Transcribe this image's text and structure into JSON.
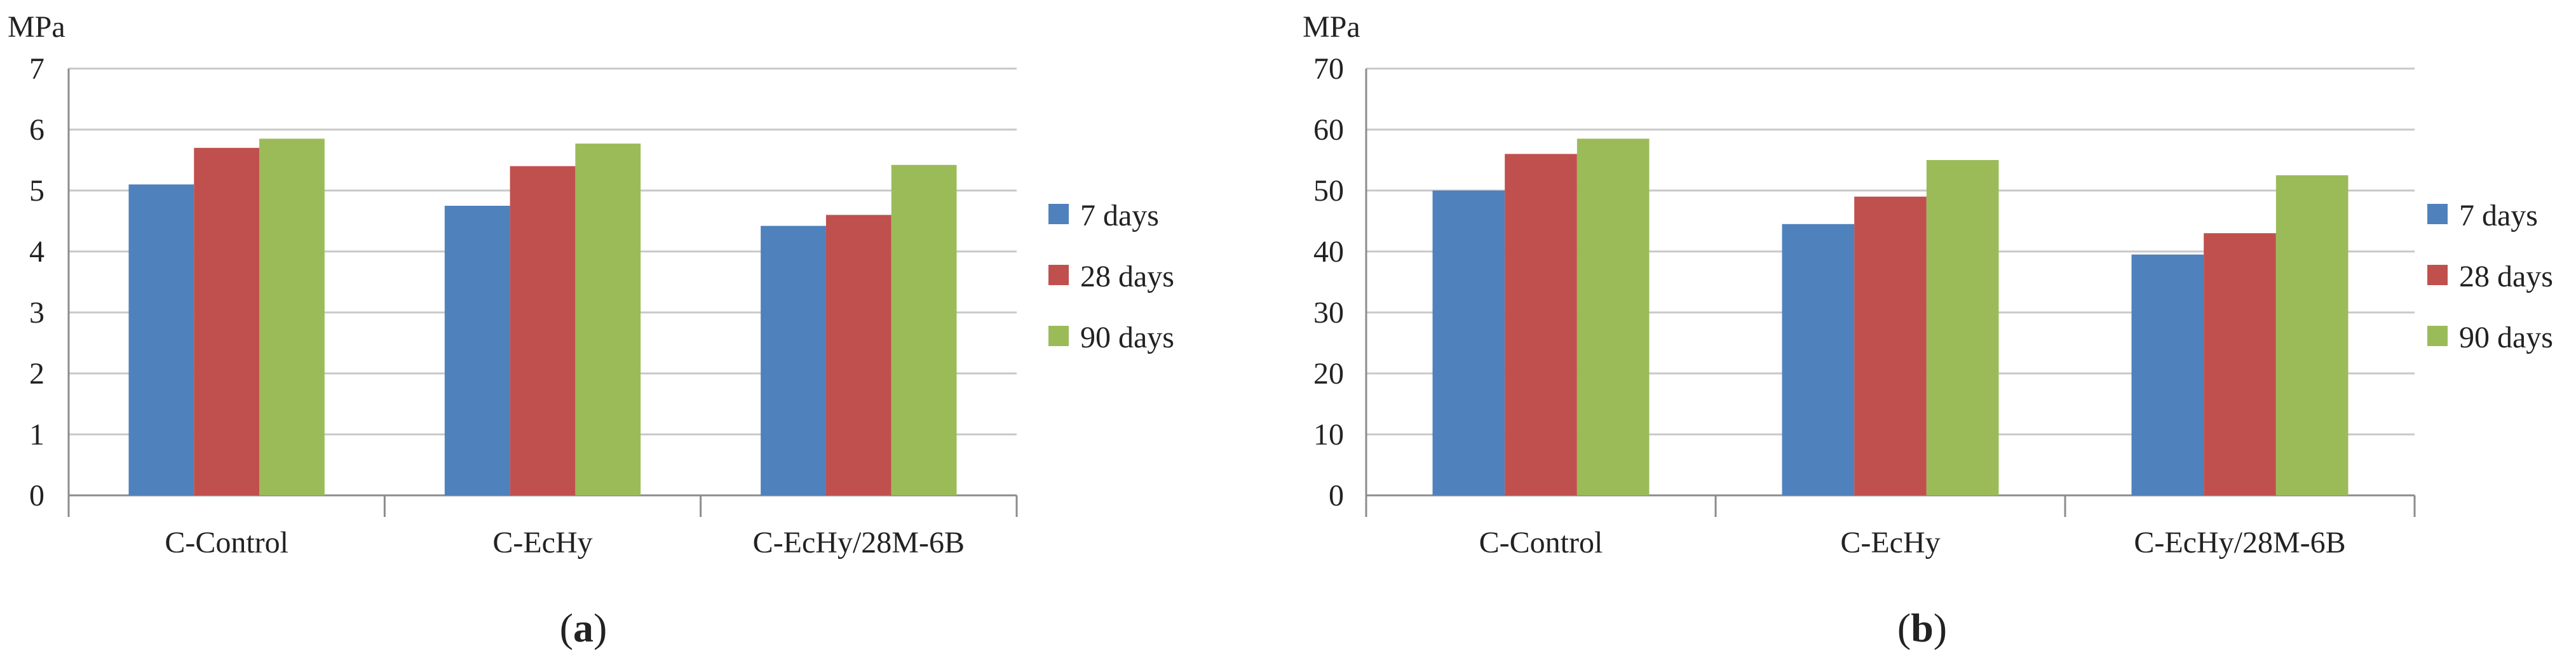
{
  "colors": {
    "series": [
      "#4F81BD",
      "#C0504D",
      "#9BBB59"
    ],
    "grid": "#c8c8c8",
    "axis": "#8c8c8c"
  },
  "chart_data": [
    {
      "type": "bar",
      "panel_label": {
        "open": "(",
        "letter": "a",
        "close": ")"
      },
      "ylabel": "MPa",
      "ylim": [
        0,
        7
      ],
      "yticks": [
        0,
        1,
        2,
        3,
        4,
        5,
        6,
        7
      ],
      "yticks_text": [
        "0",
        "1",
        "2",
        "3",
        "4",
        "5",
        "6",
        "7"
      ],
      "grid": true,
      "legend_position": "right",
      "categories": [
        "C-Control",
        "C-EcHy",
        "C-EcHy/28M-6B"
      ],
      "series": [
        {
          "name": "7 days",
          "values": [
            5.1,
            4.75,
            4.42
          ]
        },
        {
          "name": "28 days",
          "values": [
            5.7,
            5.4,
            4.6
          ]
        },
        {
          "name": "90 days",
          "values": [
            5.85,
            5.77,
            5.42
          ]
        }
      ]
    },
    {
      "type": "bar",
      "panel_label": {
        "open": "(",
        "letter": "b",
        "close": ")"
      },
      "ylabel": "MPa",
      "ylim": [
        0,
        70
      ],
      "yticks": [
        0,
        10,
        20,
        30,
        40,
        50,
        60,
        70
      ],
      "yticks_text": [
        "0",
        "10",
        "20",
        "30",
        "40",
        "50",
        "60",
        "70"
      ],
      "grid": true,
      "legend_position": "right",
      "categories": [
        "C-Control",
        "C-EcHy",
        "C-EcHy/28M-6B"
      ],
      "series": [
        {
          "name": "7 days",
          "values": [
            50,
            44.5,
            39.5
          ]
        },
        {
          "name": "28 days",
          "values": [
            56,
            49,
            43
          ]
        },
        {
          "name": "90 days",
          "values": [
            58.5,
            55,
            52.5
          ]
        }
      ]
    }
  ]
}
